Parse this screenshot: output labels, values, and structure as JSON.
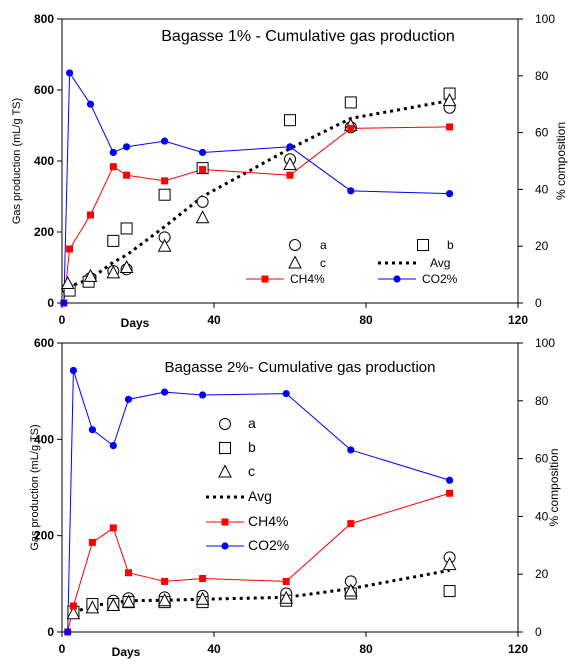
{
  "chart_data": [
    {
      "type": "line",
      "title": "Bagasse 1% - Cumulative gas production",
      "xlabel": "Days",
      "ylabel": "Gas production (mL/g TS)",
      "y2label": "% composition",
      "xlim": [
        0,
        120
      ],
      "ylim": [
        0,
        800
      ],
      "y2lim": [
        0,
        100
      ],
      "xticks": [
        "0",
        "40",
        "80",
        "120"
      ],
      "yticks": [
        "0",
        "200",
        "400",
        "600",
        "800"
      ],
      "y2ticks": [
        "0",
        "20",
        "40",
        "60",
        "80",
        "100"
      ],
      "legend_position": "lower-right",
      "legend_layout": "grid",
      "series": [
        {
          "name": "a",
          "axis": "left",
          "marker": "circle",
          "line": "none",
          "color": "#000000",
          "x": [
            1.5,
            7.5,
            13.5,
            17,
            27,
            37,
            60,
            76,
            102
          ],
          "y": [
            40,
            70,
            90,
            95,
            185,
            285,
            405,
            495,
            550
          ]
        },
        {
          "name": "b",
          "axis": "left",
          "marker": "square",
          "line": "none",
          "color": "#000000",
          "x": [
            2,
            7,
            13.5,
            17,
            27,
            37,
            60,
            76,
            102
          ],
          "y": [
            35,
            60,
            175,
            210,
            305,
            380,
            515,
            565,
            590
          ]
        },
        {
          "name": "c",
          "axis": "left",
          "marker": "triangle",
          "line": "none",
          "color": "#000000",
          "x": [
            1.5,
            7.5,
            13.5,
            17,
            27,
            37,
            60,
            76,
            102
          ],
          "y": [
            55,
            75,
            85,
            100,
            160,
            240,
            390,
            500,
            570
          ]
        },
        {
          "name": "Avg",
          "axis": "left",
          "marker": "none",
          "line": "dotted",
          "color": "#000000",
          "x": [
            1.5,
            7.5,
            13.5,
            17,
            27,
            37,
            60,
            76,
            102
          ],
          "y": [
            45,
            68,
            115,
            135,
            215,
            300,
            435,
            520,
            570
          ]
        },
        {
          "name": "CH4%",
          "axis": "right",
          "marker": "square-filled",
          "line": "solid",
          "color": "#ff0000",
          "x": [
            0.5,
            2,
            7.5,
            13.5,
            17,
            27,
            37,
            60,
            76,
            102
          ],
          "y": [
            0,
            19,
            31,
            48,
            45,
            43,
            47,
            45,
            61.5,
            62
          ]
        },
        {
          "name": "CO2%",
          "axis": "right",
          "marker": "circle-filled",
          "line": "solid",
          "color": "#0000ff",
          "x": [
            0.5,
            2,
            7.5,
            13.5,
            17,
            27,
            37,
            60,
            76,
            102
          ],
          "y": [
            0,
            81,
            70,
            53,
            55,
            57,
            53,
            55,
            39.5,
            38.5
          ]
        }
      ]
    },
    {
      "type": "line",
      "title": "Bagasse 2%- Cumulative gas production",
      "xlabel": "Days",
      "ylabel": "Gas production (mL/g TS)",
      "y2label": "% composition",
      "xlim": [
        0,
        120
      ],
      "ylim": [
        0,
        600
      ],
      "y2lim": [
        0,
        100
      ],
      "xticks": [
        "0",
        "40",
        "80",
        "120"
      ],
      "yticks": [
        "0",
        "200",
        "400",
        "600"
      ],
      "y2ticks": [
        "0",
        "20",
        "40",
        "60",
        "80",
        "100"
      ],
      "legend_position": "center",
      "legend_layout": "column",
      "series": [
        {
          "name": "a",
          "axis": "left",
          "marker": "circle",
          "line": "none",
          "color": "#000000",
          "x": [
            3,
            8,
            13.5,
            17.5,
            27,
            37,
            59,
            76,
            102
          ],
          "y": [
            40,
            55,
            65,
            70,
            72,
            75,
            80,
            105,
            155
          ]
        },
        {
          "name": "b",
          "axis": "left",
          "marker": "square",
          "line": "none",
          "color": "#000000",
          "x": [
            3,
            8,
            13.5,
            17.5,
            27,
            37,
            59,
            76,
            102
          ],
          "y": [
            42,
            58,
            58,
            62,
            62,
            62,
            65,
            80,
            85
          ]
        },
        {
          "name": "c",
          "axis": "left",
          "marker": "triangle",
          "line": "none",
          "color": "#000000",
          "x": [
            3,
            8,
            13.5,
            17.5,
            27,
            37,
            59,
            76,
            102
          ],
          "y": [
            38,
            50,
            55,
            62,
            65,
            68,
            70,
            85,
            140
          ]
        },
        {
          "name": "Avg",
          "axis": "left",
          "marker": "none",
          "line": "dotted",
          "color": "#000000",
          "x": [
            3,
            8,
            13.5,
            17.5,
            27,
            37,
            59,
            76,
            102
          ],
          "y": [
            40,
            55,
            60,
            65,
            66,
            68,
            72,
            90,
            128
          ]
        },
        {
          "name": "CH4%",
          "axis": "right",
          "marker": "square-filled",
          "line": "solid",
          "color": "#ff0000",
          "x": [
            1.5,
            3,
            8,
            13.5,
            17.5,
            27,
            37,
            59,
            76,
            102
          ],
          "y": [
            0,
            9,
            31,
            36,
            20.5,
            17.5,
            18.5,
            17.5,
            37.5,
            48
          ]
        },
        {
          "name": "CO2%",
          "axis": "right",
          "marker": "circle-filled",
          "line": "solid",
          "color": "#0000ff",
          "x": [
            1.5,
            3,
            8,
            13.5,
            17.5,
            27,
            37,
            59,
            76,
            102
          ],
          "y": [
            0,
            90.5,
            70,
            64.5,
            80.5,
            83,
            82,
            82.5,
            63,
            52.5
          ]
        }
      ]
    }
  ]
}
